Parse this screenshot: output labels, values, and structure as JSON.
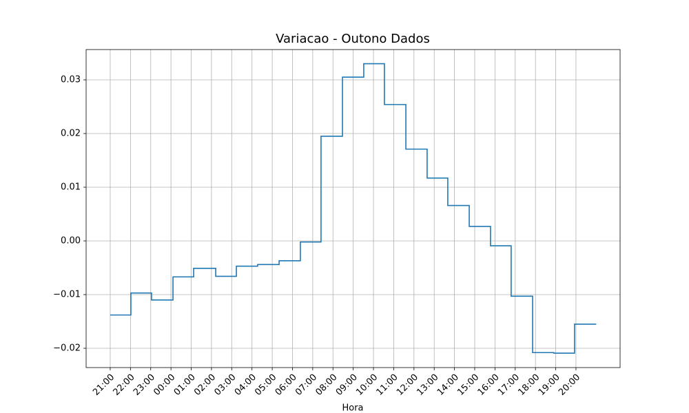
{
  "chart_data": {
    "type": "step",
    "title": "Variacao - Outono Dados",
    "x_label": "Hora",
    "series": [
      {
        "color": "#1f77b4",
        "x": [
          0,
          1.02,
          2.04,
          3.1,
          4.12,
          5.21,
          6.23,
          7.28,
          8.34,
          9.39,
          10.41,
          11.47,
          12.52,
          13.54,
          14.6,
          15.65,
          16.67,
          17.73,
          18.78,
          19.8,
          20.86,
          21.91,
          22.93,
          24
        ],
        "values": [
          -0.0138,
          -0.0097,
          -0.011,
          -0.0067,
          -0.0051,
          -0.0066,
          -0.0047,
          -0.0044,
          -0.0037,
          -0.0002,
          0.0195,
          0.0305,
          0.033,
          0.0254,
          0.0171,
          0.0117,
          0.0066,
          0.0027,
          -0.0009,
          -0.0103,
          -0.0208,
          -0.0209,
          -0.0155,
          -0.0155
        ]
      }
    ],
    "xlim": [
      -1.19,
      25.18
    ],
    "xticks": [
      {
        "value": 0,
        "label": "21:00"
      },
      {
        "value": 1,
        "label": "22:00"
      },
      {
        "value": 2,
        "label": "23:00"
      },
      {
        "value": 3,
        "label": "00:00"
      },
      {
        "value": 4,
        "label": "01:00"
      },
      {
        "value": 5,
        "label": "02:00"
      },
      {
        "value": 6,
        "label": "03:00"
      },
      {
        "value": 7,
        "label": "04:00"
      },
      {
        "value": 8,
        "label": "05:00"
      },
      {
        "value": 9,
        "label": "06:00"
      },
      {
        "value": 10,
        "label": "07:00"
      },
      {
        "value": 11,
        "label": "08:00"
      },
      {
        "value": 12,
        "label": "09:00"
      },
      {
        "value": 13,
        "label": "10:00"
      },
      {
        "value": 14,
        "label": "11:00"
      },
      {
        "value": 15,
        "label": "12:00"
      },
      {
        "value": 16,
        "label": "13:00"
      },
      {
        "value": 17,
        "label": "14:00"
      },
      {
        "value": 18,
        "label": "15:00"
      },
      {
        "value": 19,
        "label": "16:00"
      },
      {
        "value": 20,
        "label": "17:00"
      },
      {
        "value": 21,
        "label": "18:00"
      },
      {
        "value": 22,
        "label": "19:00"
      },
      {
        "value": 23,
        "label": "20:00"
      }
    ],
    "ylim": [
      -0.02359,
      0.03564
    ],
    "yticks": [
      {
        "value": -0.02,
        "label": "−0.02"
      },
      {
        "value": -0.01,
        "label": "−0.01"
      },
      {
        "value": 0,
        "label": "0.00"
      },
      0.01,
      0.02,
      0.03
    ],
    "grid": true
  }
}
